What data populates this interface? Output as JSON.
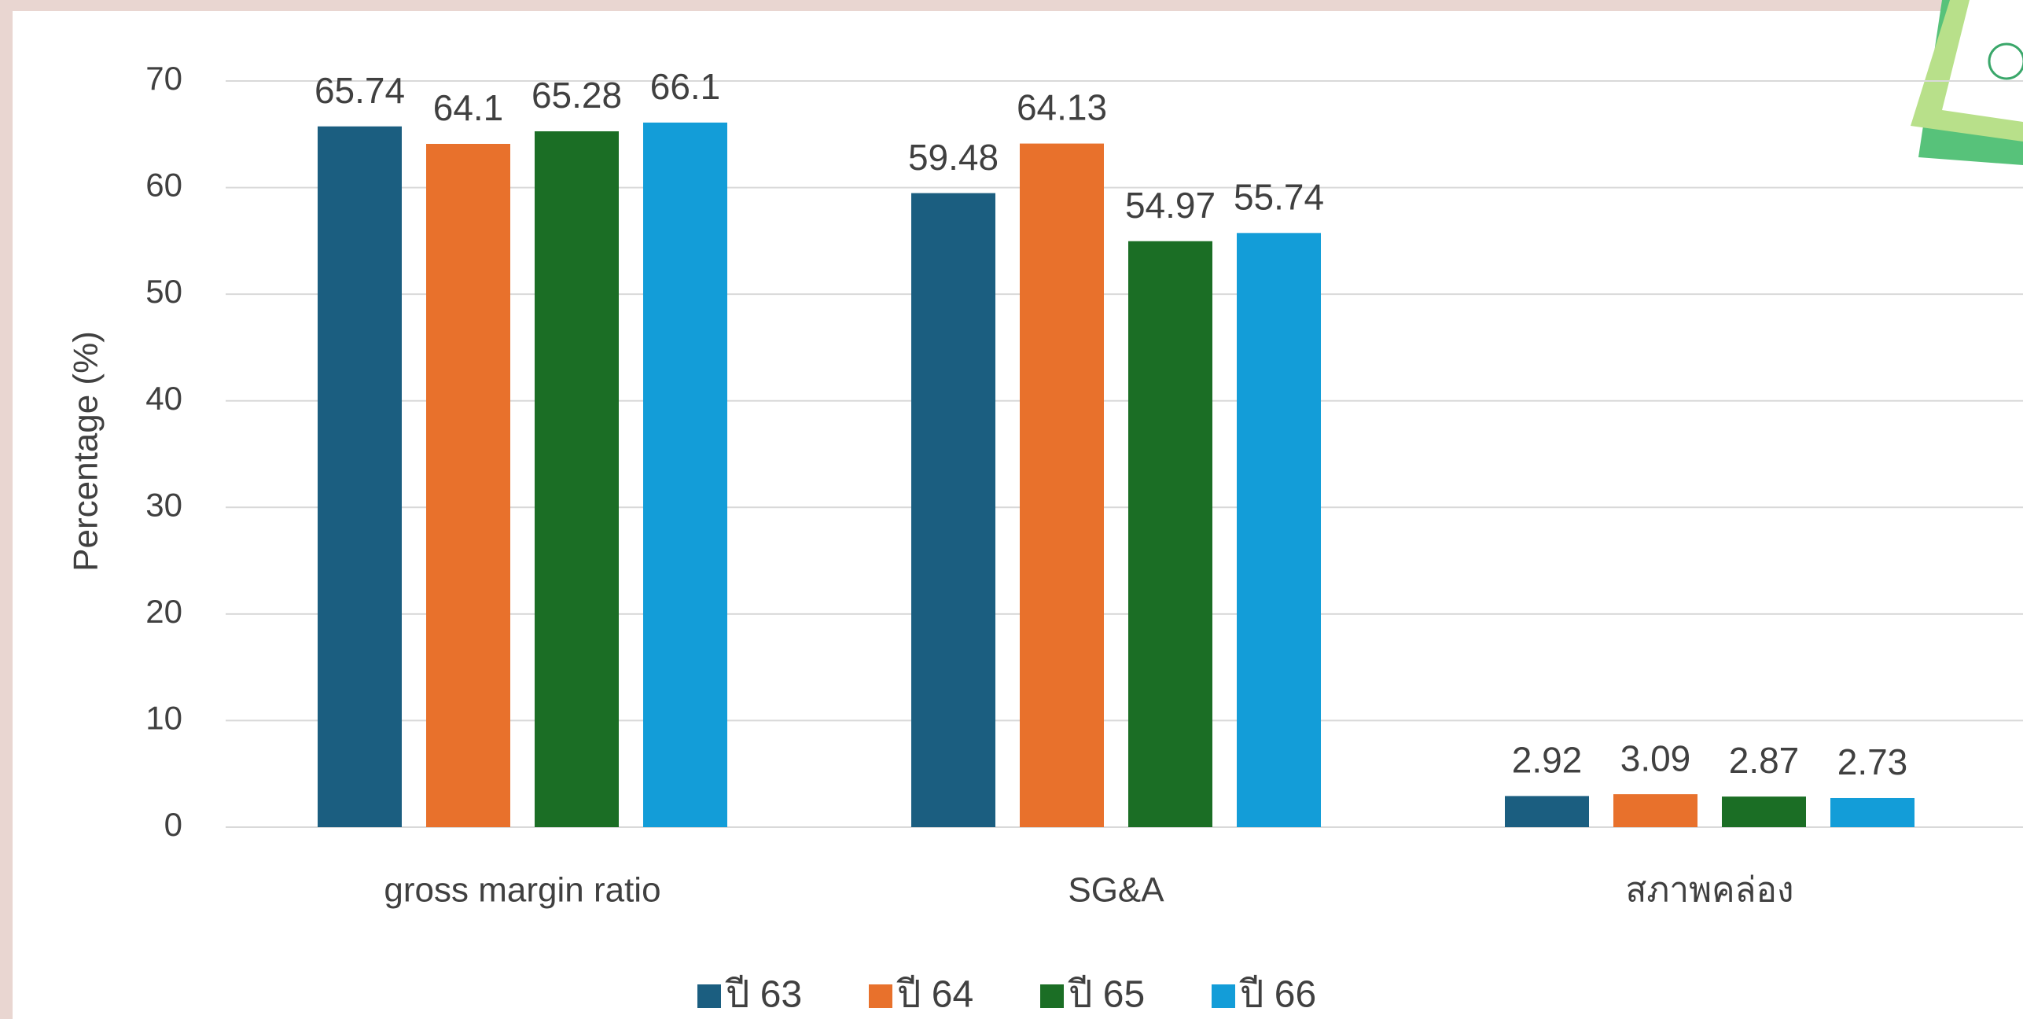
{
  "chart_data": {
    "type": "bar",
    "y_label": "Percentage (%)",
    "categories": [
      "gross margin ratio",
      "SG&A",
      "สภาพคล่อง"
    ],
    "series": [
      {
        "name": "ปี 63",
        "color": "#1b5e80",
        "values": [
          65.74,
          59.48,
          2.92
        ]
      },
      {
        "name": "ปี 64",
        "color": "#e8712c",
        "values": [
          64.1,
          64.13,
          3.09
        ]
      },
      {
        "name": "ปี 65",
        "color": "#1b6e25",
        "values": [
          65.28,
          54.97,
          2.87
        ]
      },
      {
        "name": "ปี 66",
        "color": "#139dd8",
        "values": [
          66.1,
          55.74,
          2.73
        ]
      }
    ],
    "ylim": [
      0,
      70
    ],
    "yticks": [
      0,
      10,
      20,
      30,
      40,
      50,
      60,
      70
    ],
    "grid": true,
    "legend": "bottom"
  }
}
